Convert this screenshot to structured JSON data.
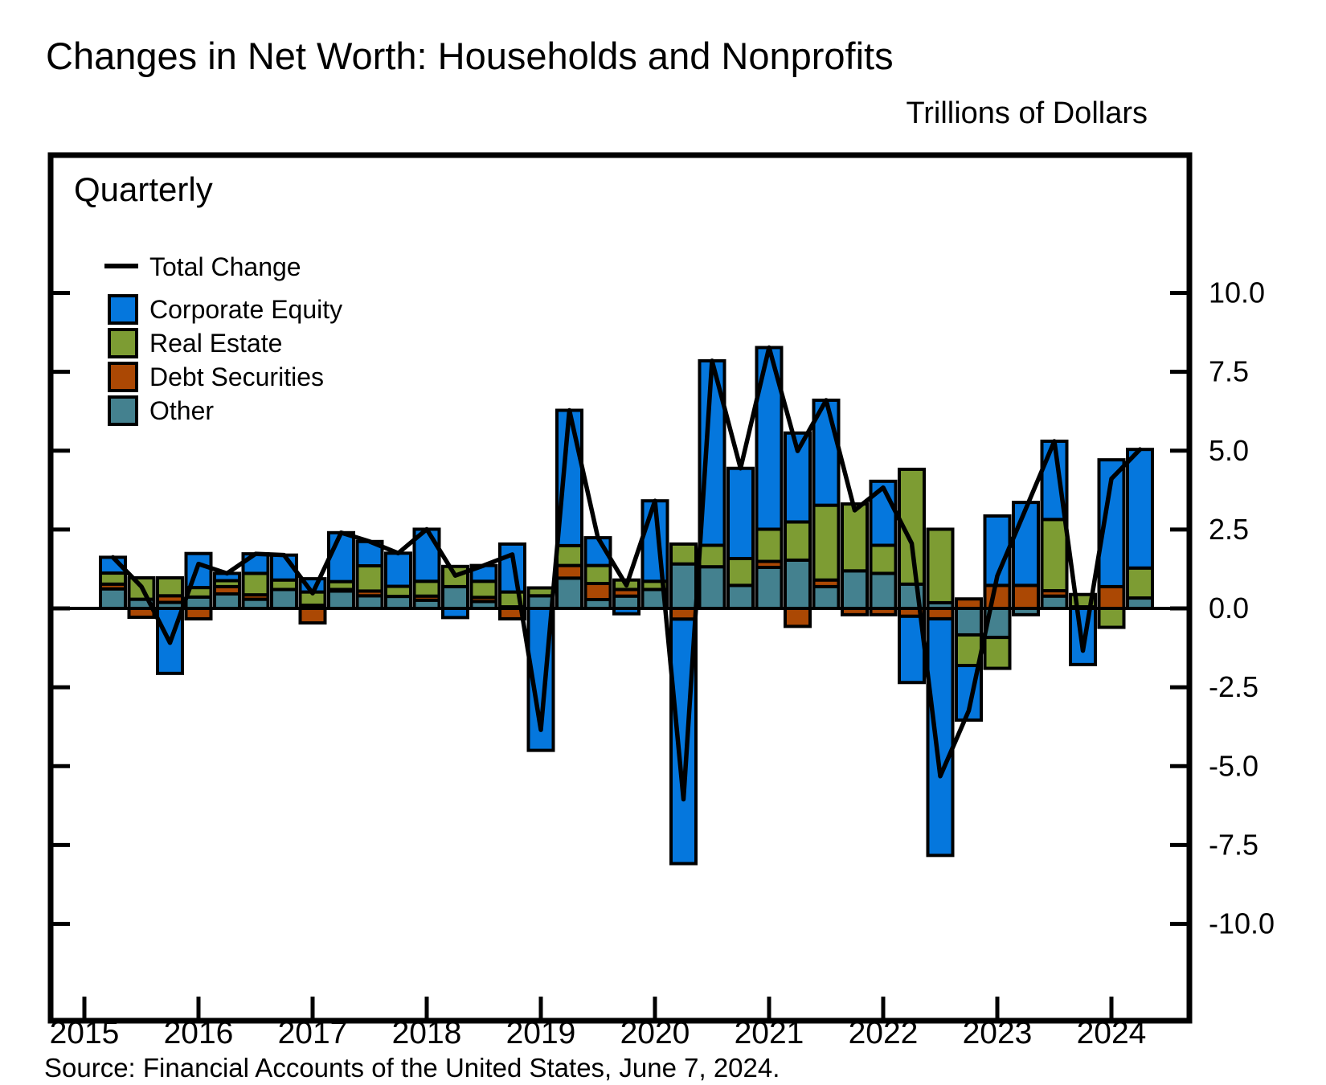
{
  "header": {
    "title": "Changes in Net Worth: Households and Nonprofits",
    "units_label": "Trillions of Dollars",
    "frequency_label": "Quarterly"
  },
  "source_line": "Source: Financial Accounts of the United States, June 7, 2024.",
  "legend": {
    "line_entry": {
      "label": "Total Change",
      "color": "#000000"
    },
    "box_entries": [
      {
        "label": "Corporate Equity",
        "color": "#0577dd"
      },
      {
        "label": "Real Estate",
        "color": "#7d9c33"
      },
      {
        "label": "Debt Securities",
        "color": "#ab4804"
      },
      {
        "label": "Other",
        "color": "#44818f"
      }
    ]
  },
  "y_axis": {
    "tick_values": [
      10.0,
      7.5,
      5.0,
      2.5,
      0.0,
      -2.5,
      -5.0,
      -7.5,
      -10.0
    ],
    "tick_labels": [
      "10.0",
      "7.5",
      "5.0",
      "2.5",
      "0.0",
      "-2.5",
      "-5.0",
      "-7.5",
      "-10.0"
    ]
  },
  "x_axis": {
    "year_labels": [
      "2015",
      "2016",
      "2017",
      "2018",
      "2019",
      "2020",
      "2021",
      "2022",
      "2023",
      "2024"
    ]
  },
  "chart_data": {
    "type": "bar",
    "stacked": true,
    "title": "Changes in Net Worth: Households and Nonprofits",
    "ylabel": "Trillions of Dollars",
    "ylim": [
      -10.5,
      10.5
    ],
    "grid": false,
    "legend_position": "upper-left",
    "categories": [
      "2015 Q1",
      "2015 Q2",
      "2015 Q3",
      "2015 Q4",
      "2016 Q1",
      "2016 Q2",
      "2016 Q3",
      "2016 Q4",
      "2017 Q1",
      "2017 Q2",
      "2017 Q3",
      "2017 Q4",
      "2018 Q1",
      "2018 Q2",
      "2018 Q3",
      "2018 Q4",
      "2019 Q1",
      "2019 Q2",
      "2019 Q3",
      "2019 Q4",
      "2020 Q1",
      "2020 Q2",
      "2020 Q3",
      "2020 Q4",
      "2021 Q1",
      "2021 Q2",
      "2021 Q3",
      "2021 Q4",
      "2022 Q1",
      "2022 Q2",
      "2022 Q3",
      "2022 Q4",
      "2023 Q1",
      "2023 Q2",
      "2023 Q3",
      "2023 Q4",
      "2024 Q1"
    ],
    "series": [
      {
        "name": "Other",
        "color": "#44818f",
        "values": [
          0.62,
          0.29,
          0.19,
          0.36,
          0.46,
          0.29,
          0.6,
          0.1,
          0.55,
          0.4,
          0.38,
          0.26,
          0.69,
          0.22,
          0.05,
          0.4,
          0.96,
          0.28,
          0.39,
          0.6,
          1.41,
          1.32,
          0.73,
          1.3,
          1.53,
          0.69,
          1.19,
          1.11,
          0.77,
          0.18,
          -0.84,
          -0.92,
          -0.2,
          0.39,
          0.05,
          0.0,
          0.33
        ]
      },
      {
        "name": "Debt Securities",
        "color": "#ab4804",
        "values": [
          0.15,
          -0.28,
          0.21,
          -0.33,
          0.23,
          0.14,
          0.0,
          -0.46,
          0.05,
          0.15,
          0.0,
          0.13,
          0.0,
          0.13,
          -0.33,
          0.0,
          0.4,
          0.51,
          0.21,
          0.0,
          -0.34,
          0.0,
          0.0,
          0.19,
          -0.57,
          0.21,
          -0.2,
          -0.2,
          -0.25,
          -0.33,
          0.3,
          0.73,
          0.73,
          0.17,
          0.0,
          0.69,
          0.0
        ]
      },
      {
        "name": "Real Estate",
        "color": "#7d9c33",
        "values": [
          0.35,
          0.68,
          0.57,
          0.3,
          0.19,
          0.68,
          0.3,
          0.42,
          0.25,
          0.8,
          0.32,
          0.47,
          0.64,
          0.51,
          0.47,
          0.25,
          0.63,
          0.57,
          0.3,
          0.26,
          0.63,
          0.68,
          0.85,
          1.02,
          1.21,
          2.37,
          2.12,
          0.89,
          3.64,
          2.33,
          -0.97,
          -0.98,
          0.0,
          2.26,
          0.39,
          -0.6,
          0.95
        ]
      },
      {
        "name": "Corporate Equity",
        "color": "#0577dd",
        "values": [
          0.5,
          0.0,
          -2.06,
          1.08,
          0.23,
          0.62,
          0.79,
          0.42,
          1.55,
          0.77,
          1.05,
          1.65,
          -0.29,
          0.5,
          1.52,
          -4.5,
          4.29,
          0.88,
          -0.17,
          2.55,
          -7.75,
          5.85,
          2.86,
          5.76,
          2.82,
          3.33,
          0.0,
          2.03,
          -2.1,
          -7.5,
          -1.73,
          2.2,
          2.63,
          2.48,
          -1.78,
          4.02,
          3.76
        ]
      }
    ],
    "total_change_line": {
      "name": "Total Change",
      "color": "#000000",
      "values": [
        1.62,
        0.69,
        -1.09,
        1.41,
        1.11,
        1.73,
        1.69,
        0.48,
        2.4,
        2.12,
        1.75,
        2.51,
        1.04,
        1.36,
        1.71,
        -3.85,
        6.28,
        2.24,
        0.73,
        3.41,
        -6.05,
        7.85,
        4.44,
        8.27,
        4.99,
        6.6,
        3.11,
        3.83,
        2.06,
        -5.32,
        -3.24,
        1.03,
        3.16,
        5.3,
        -1.34,
        4.11,
        5.04
      ]
    }
  }
}
